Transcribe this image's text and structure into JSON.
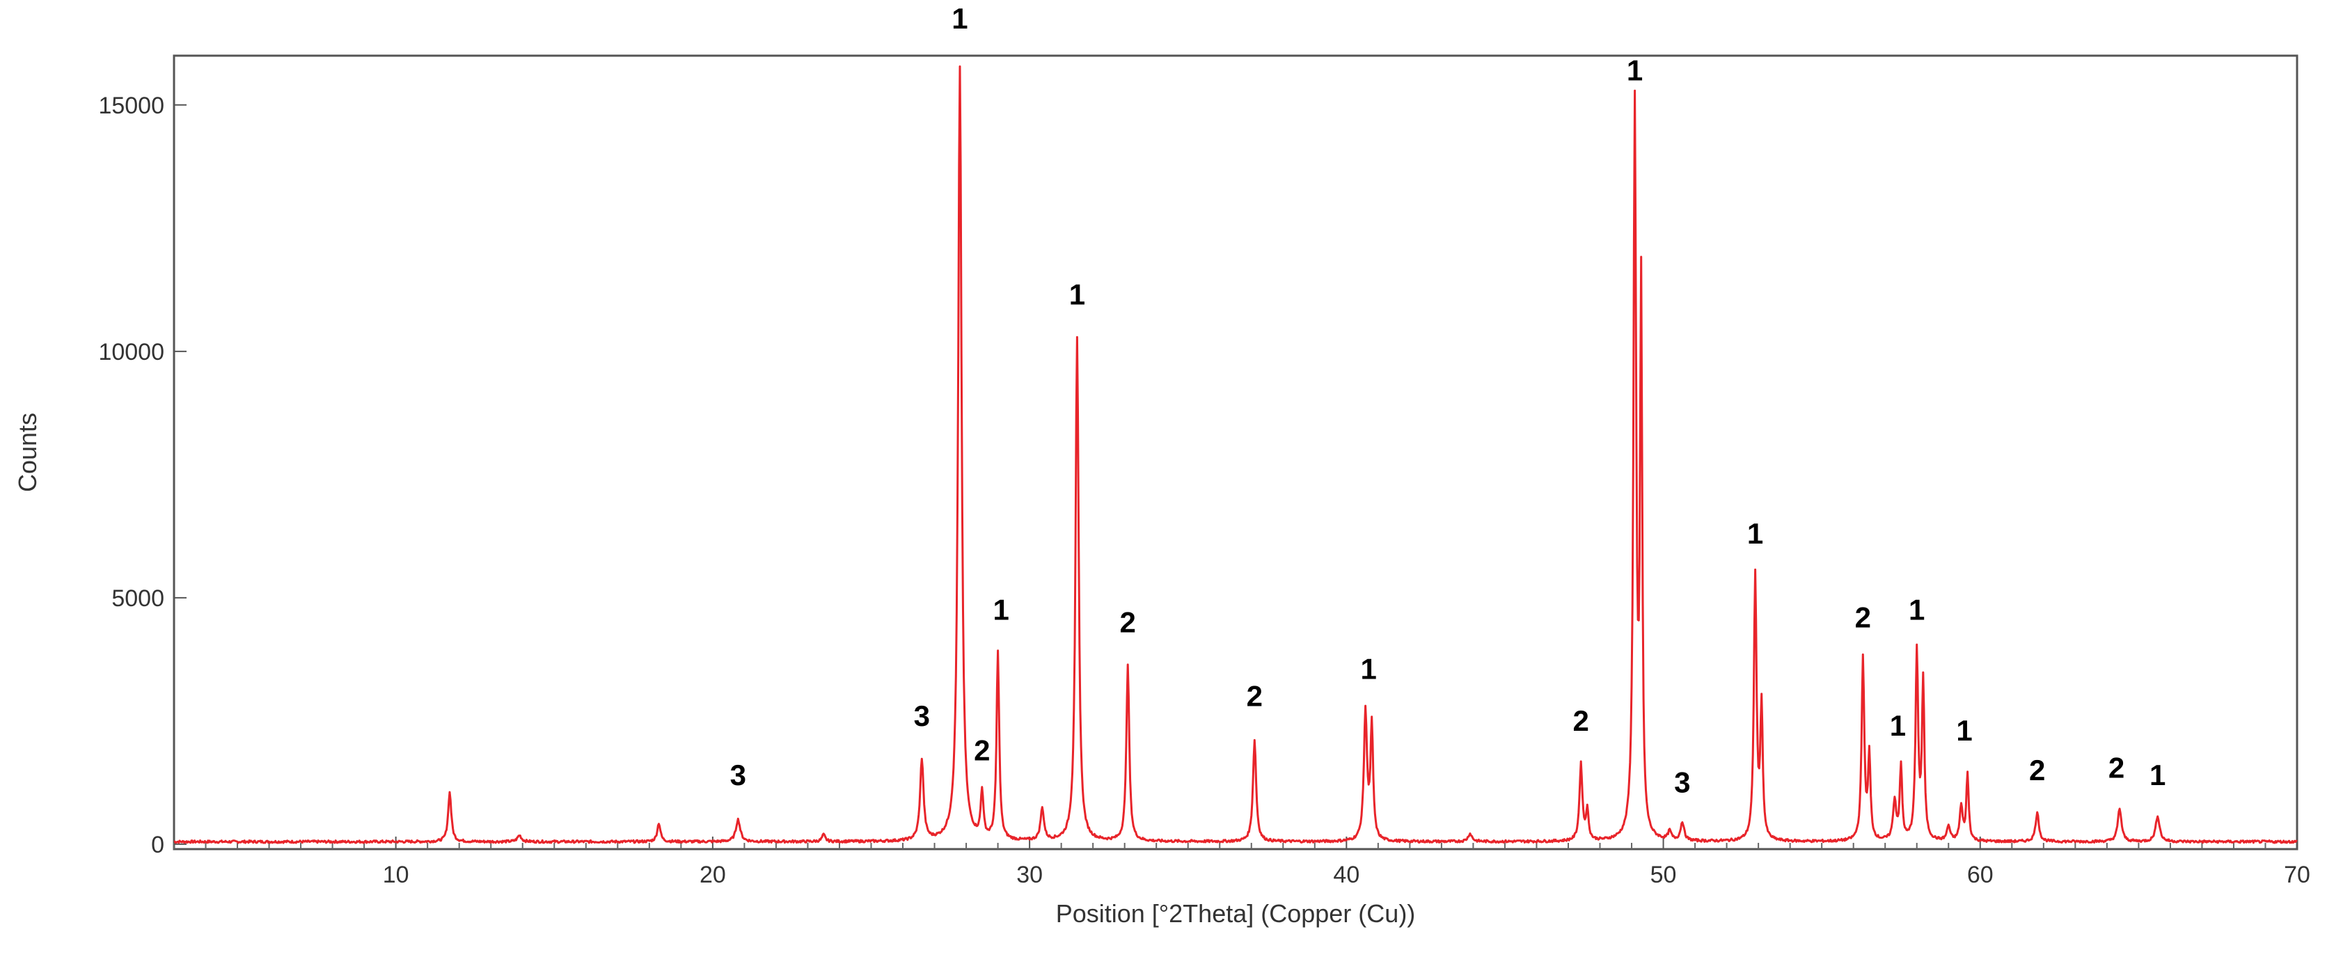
{
  "chart_data": {
    "type": "line",
    "title": "",
    "xlabel": "Position [°2Theta] (Copper (Cu))",
    "ylabel": "Counts",
    "xlim": [
      3,
      70
    ],
    "ylim": [
      -100,
      16000
    ],
    "x_ticks": [
      10,
      20,
      30,
      40,
      50,
      60,
      70
    ],
    "x_tick_labels": [
      "10",
      "20",
      "30",
      "40",
      "50",
      "60",
      "70"
    ],
    "x_minor_step": 1,
    "y_ticks": [
      0,
      5000,
      10000,
      15000
    ],
    "y_tick_labels": [
      "0",
      "5000",
      "10000",
      "15000"
    ],
    "grid": false,
    "legend": "none",
    "baseline": 50,
    "line_color": "#e8242a",
    "series": [
      {
        "peaks": [
          [
            11.7,
            1000,
            0.12
          ],
          [
            13.9,
            130,
            0.15
          ],
          [
            18.3,
            380,
            0.12
          ],
          [
            20.8,
            450,
            0.16
          ],
          [
            23.5,
            140,
            0.12
          ],
          [
            26.6,
            1650,
            0.13
          ],
          [
            27.8,
            15700,
            0.13
          ],
          [
            28.5,
            950,
            0.1
          ],
          [
            29.0,
            3800,
            0.1
          ],
          [
            30.4,
            650,
            0.13
          ],
          [
            31.5,
            10200,
            0.12
          ],
          [
            33.1,
            3550,
            0.11
          ],
          [
            37.1,
            2050,
            0.12
          ],
          [
            40.6,
            2600,
            0.12
          ],
          [
            40.8,
            2300,
            0.1
          ],
          [
            43.9,
            160,
            0.15
          ],
          [
            47.4,
            1550,
            0.11
          ],
          [
            47.6,
            600,
            0.1
          ],
          [
            49.1,
            14800,
            0.1
          ],
          [
            49.3,
            11000,
            0.08
          ],
          [
            50.2,
            180,
            0.12
          ],
          [
            50.6,
            380,
            0.13
          ],
          [
            52.9,
            5400,
            0.1
          ],
          [
            53.1,
            2700,
            0.09
          ],
          [
            56.3,
            3700,
            0.1
          ],
          [
            56.5,
            1700,
            0.09
          ],
          [
            57.3,
            800,
            0.12
          ],
          [
            57.5,
            1500,
            0.09
          ],
          [
            58.0,
            3800,
            0.1
          ],
          [
            58.2,
            3200,
            0.09
          ],
          [
            59.0,
            300,
            0.12
          ],
          [
            59.4,
            700,
            0.11
          ],
          [
            59.6,
            1350,
            0.09
          ],
          [
            61.8,
            580,
            0.13
          ],
          [
            64.4,
            670,
            0.14
          ],
          [
            65.6,
            520,
            0.15
          ]
        ]
      }
    ],
    "annotations": [
      {
        "text": "1",
        "x": 27.8,
        "y": 16550
      },
      {
        "text": "1",
        "x": 31.5,
        "y": 10950
      },
      {
        "text": "1",
        "x": 29.1,
        "y": 4550
      },
      {
        "text": "2",
        "x": 28.5,
        "y": 1700
      },
      {
        "text": "3",
        "x": 26.6,
        "y": 2400
      },
      {
        "text": "3",
        "x": 20.8,
        "y": 1200
      },
      {
        "text": "2",
        "x": 33.1,
        "y": 4300
      },
      {
        "text": "2",
        "x": 37.1,
        "y": 2800
      },
      {
        "text": "1",
        "x": 40.7,
        "y": 3350
      },
      {
        "text": "2",
        "x": 47.4,
        "y": 2300
      },
      {
        "text": "1",
        "x": 49.1,
        "y": 15500
      },
      {
        "text": "3",
        "x": 50.6,
        "y": 1050
      },
      {
        "text": "1",
        "x": 52.9,
        "y": 6100
      },
      {
        "text": "2",
        "x": 56.3,
        "y": 4400
      },
      {
        "text": "1",
        "x": 58.0,
        "y": 4550
      },
      {
        "text": "1",
        "x": 57.4,
        "y": 2200
      },
      {
        "text": "1",
        "x": 59.5,
        "y": 2100
      },
      {
        "text": "2",
        "x": 61.8,
        "y": 1300
      },
      {
        "text": "2",
        "x": 64.3,
        "y": 1350
      },
      {
        "text": "1",
        "x": 65.6,
        "y": 1200
      }
    ]
  }
}
